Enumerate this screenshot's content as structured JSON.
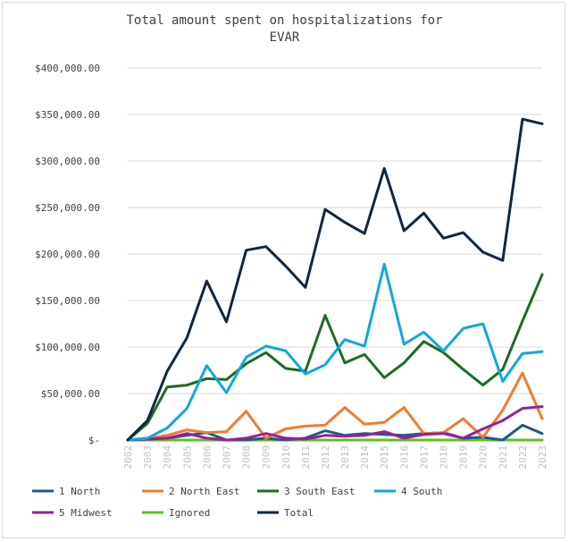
{
  "chart_data": {
    "type": "line",
    "title_lines": [
      "Total amount spent on hospitalizations for",
      "EVAR"
    ],
    "xlabel": "",
    "ylabel": "",
    "x": [
      "2002",
      "2003",
      "2004",
      "2005",
      "2006",
      "2007",
      "2008",
      "2009",
      "2010",
      "2011",
      "2012",
      "2013",
      "2014",
      "2015",
      "2016",
      "2017",
      "2018",
      "2019",
      "2020",
      "2021",
      "2022",
      "2023"
    ],
    "ylim": [
      0,
      400000
    ],
    "yticks": [
      0,
      50000,
      100000,
      150000,
      200000,
      250000,
      300000,
      350000,
      400000
    ],
    "ytick_labels": [
      "$-",
      "$50,000.00",
      "$100,000.00",
      "$150,000.00",
      "$200,000.00",
      "$250,000.00",
      "$300,000.00",
      "$350,000.00",
      "$400,000.00"
    ],
    "grid": "horizontal",
    "legend_position": "bottom",
    "series": [
      {
        "name": "1 North",
        "color": "#1f5b82",
        "values": [
          0,
          1000,
          2000,
          5000,
          8000,
          0,
          0,
          2000,
          0,
          2000,
          10000,
          5000,
          7000,
          6000,
          5000,
          7000,
          8000,
          2000,
          3000,
          0,
          16000,
          7000
        ]
      },
      {
        "name": "2 North East",
        "color": "#ed7d31",
        "values": [
          0,
          2000,
          5000,
          11000,
          8000,
          9000,
          31000,
          2000,
          12000,
          15000,
          16000,
          35000,
          17000,
          19000,
          35000,
          7000,
          8000,
          23000,
          3000,
          32000,
          72000,
          23000
        ]
      },
      {
        "name": "3 South East",
        "color": "#1e6b23",
        "values": [
          0,
          18000,
          57000,
          59000,
          66000,
          65000,
          82000,
          94000,
          77000,
          74000,
          134000,
          83000,
          92000,
          67000,
          83000,
          106000,
          94000,
          76000,
          59000,
          76000,
          128000,
          178000
        ]
      },
      {
        "name": "4 South",
        "color": "#0fa8de",
        "values": [
          0,
          2000,
          13000,
          34000,
          80000,
          51000,
          89000,
          101000,
          96000,
          71000,
          81000,
          108000,
          101000,
          189000,
          103000,
          116000,
          96000,
          120000,
          125000,
          63000,
          93000,
          95000
        ]
      },
      {
        "name": "5 Midwest",
        "color": "#9a1f9a",
        "values": [
          0,
          1000,
          2000,
          7000,
          2000,
          0,
          2000,
          7000,
          2000,
          1000,
          5000,
          4000,
          5000,
          9000,
          2000,
          6000,
          7000,
          2000,
          12000,
          21000,
          34000,
          36000
        ]
      },
      {
        "name": "Ignored",
        "color": "#5cc21e",
        "values": [
          0,
          0,
          0,
          0,
          0,
          0,
          0,
          0,
          0,
          0,
          0,
          0,
          0,
          0,
          0,
          0,
          0,
          0,
          0,
          0,
          0,
          0
        ]
      },
      {
        "name": "Total",
        "color": "#0e2841",
        "values": [
          0,
          21000,
          74000,
          110000,
          171000,
          127000,
          204000,
          208000,
          187000,
          164000,
          248000,
          234000,
          222000,
          292000,
          225000,
          244000,
          217000,
          223000,
          202000,
          193000,
          345000,
          340000
        ]
      }
    ]
  }
}
